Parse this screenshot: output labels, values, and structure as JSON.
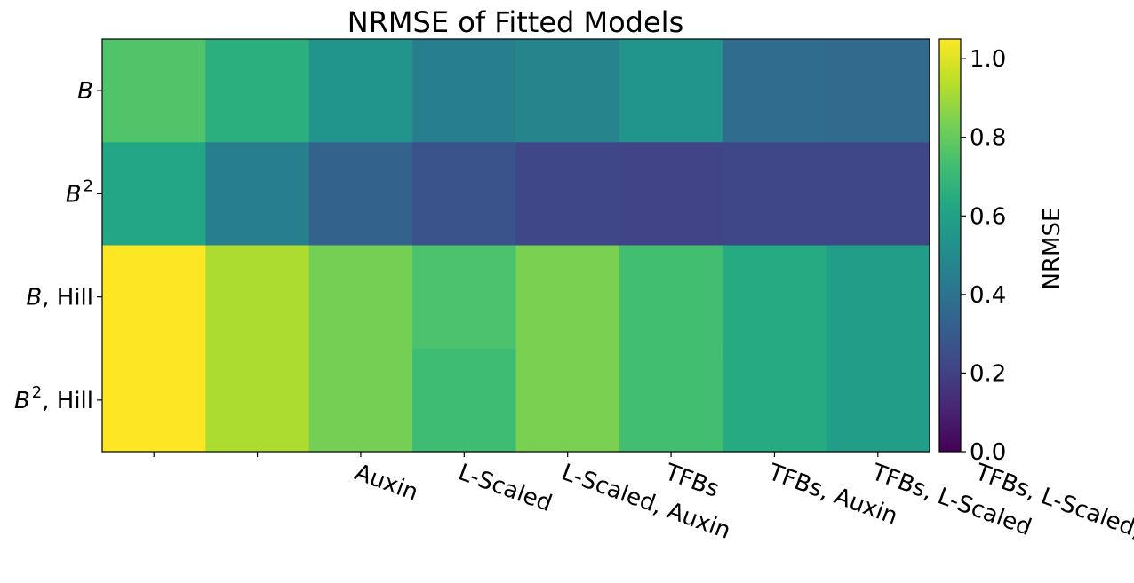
{
  "chart_data": {
    "type": "heatmap",
    "title": "NRMSE of Fitted Models",
    "x_categories": [
      "",
      "Auxin",
      "L-Scaled",
      "L-Scaled, Auxin",
      "TFBs",
      "TFBs, Auxin",
      "TFBs, L-Scaled",
      "TFBs, L-Scaled, Auxin"
    ],
    "y_categories": [
      {
        "main": "B",
        "sup": "",
        "suffix": ""
      },
      {
        "main": "B",
        "sup": "2",
        "suffix": ""
      },
      {
        "main": "B",
        "sup": "",
        "suffix": ", Hill"
      },
      {
        "main": "B",
        "sup": "2",
        "suffix": ", Hill"
      }
    ],
    "values": [
      [
        0.76,
        0.66,
        0.54,
        0.45,
        0.47,
        0.54,
        0.37,
        0.36
      ],
      [
        0.62,
        0.45,
        0.33,
        0.27,
        0.22,
        0.21,
        0.22,
        0.22
      ],
      [
        1.05,
        0.92,
        0.83,
        0.75,
        0.84,
        0.73,
        0.64,
        0.58
      ],
      [
        1.05,
        0.92,
        0.83,
        0.72,
        0.84,
        0.73,
        0.64,
        0.58
      ]
    ],
    "hill_row_split": 0.55,
    "colorbar": {
      "label": "NRMSE",
      "min": 0,
      "max": 1.05,
      "ticks": [
        "0.0",
        "0.2",
        "0.4",
        "0.6",
        "0.8",
        "1.0"
      ],
      "colormap": "viridis"
    }
  }
}
